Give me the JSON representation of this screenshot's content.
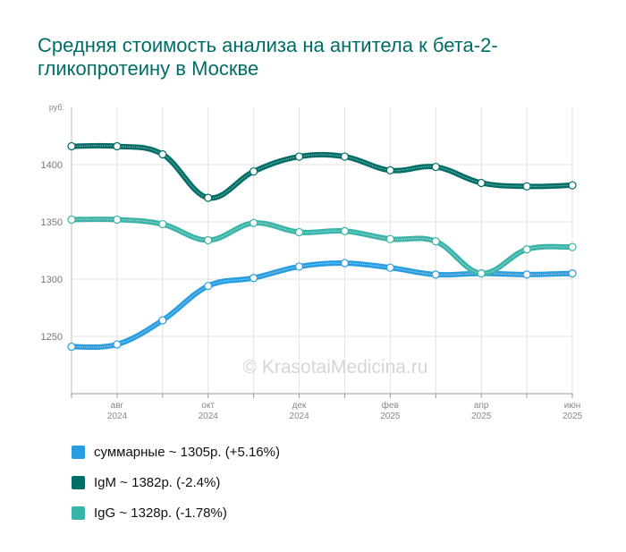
{
  "chart_data": {
    "type": "line",
    "title": "Средняя стоимость анализа на антитела к бета-2-гликопротеину в Москве",
    "ylabel": "руб.",
    "yticks": [
      1250,
      1300,
      1350,
      1400
    ],
    "ylim": [
      1200,
      1450
    ],
    "xtick_labels": [
      {
        "index": 1,
        "month": "авг",
        "year": "2024"
      },
      {
        "index": 3,
        "month": "окт",
        "year": "2024"
      },
      {
        "index": 5,
        "month": "дек",
        "year": "2024"
      },
      {
        "index": 7,
        "month": "фев",
        "year": "2025"
      },
      {
        "index": 9,
        "month": "апр",
        "year": "2025"
      },
      {
        "index": 11,
        "month": "июн",
        "year": "2025"
      }
    ],
    "x_count": 12,
    "watermark": "© KrasotaiMedicina.ru",
    "grid": true,
    "series": [
      {
        "name": "суммарные",
        "color": "#2a9de0",
        "values": [
          1241,
          1243,
          1264,
          1294,
          1301,
          1311,
          1314,
          1310,
          1304,
          1305,
          1304,
          1305
        ]
      },
      {
        "name": "IgM",
        "color": "#006d66",
        "values": [
          1416,
          1416,
          1409,
          1371,
          1394,
          1407,
          1407,
          1395,
          1398,
          1384,
          1381,
          1382
        ]
      },
      {
        "name": "IgG",
        "color": "#3ab4a8",
        "values": [
          1352,
          1352,
          1348,
          1334,
          1349,
          1341,
          1342,
          1335,
          1333,
          1305,
          1326,
          1328
        ]
      }
    ]
  },
  "legend": [
    {
      "label": "суммарные ~ 1305р. (+5.16%)",
      "color": "#2a9de0"
    },
    {
      "label": "IgM ~ 1382р. (-2.4%)",
      "color": "#006d66"
    },
    {
      "label": "IgG ~ 1328р. (-1.78%)",
      "color": "#3ab4a8"
    }
  ]
}
